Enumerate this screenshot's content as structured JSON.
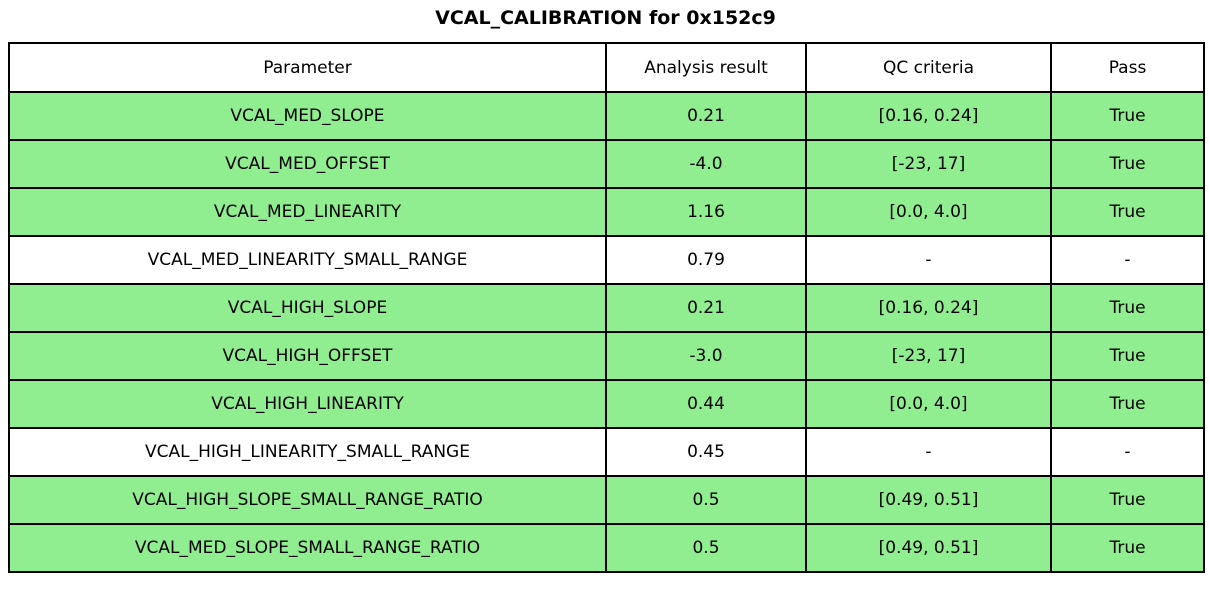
{
  "title": "VCAL_CALIBRATION for 0x152c9",
  "colors": {
    "pass_row_bg": "#90ee90",
    "plain_row_bg": "#ffffff",
    "header_bg": "#ffffff",
    "border": "#000000",
    "text": "#000000"
  },
  "chart_data": {
    "type": "table",
    "title": "VCAL_CALIBRATION for 0x152c9",
    "columns": [
      "Parameter",
      "Analysis result",
      "QC criteria",
      "Pass"
    ],
    "rows": [
      {
        "cells": [
          "VCAL_MED_SLOPE",
          "0.21",
          "[0.16, 0.24]",
          "True"
        ],
        "highlighted": true
      },
      {
        "cells": [
          "VCAL_MED_OFFSET",
          "-4.0",
          "[-23, 17]",
          "True"
        ],
        "highlighted": true
      },
      {
        "cells": [
          "VCAL_MED_LINEARITY",
          "1.16",
          "[0.0, 4.0]",
          "True"
        ],
        "highlighted": true
      },
      {
        "cells": [
          "VCAL_MED_LINEARITY_SMALL_RANGE",
          "0.79",
          "-",
          "-"
        ],
        "highlighted": false
      },
      {
        "cells": [
          "VCAL_HIGH_SLOPE",
          "0.21",
          "[0.16, 0.24]",
          "True"
        ],
        "highlighted": true
      },
      {
        "cells": [
          "VCAL_HIGH_OFFSET",
          "-3.0",
          "[-23, 17]",
          "True"
        ],
        "highlighted": true
      },
      {
        "cells": [
          "VCAL_HIGH_LINEARITY",
          "0.44",
          "[0.0, 4.0]",
          "True"
        ],
        "highlighted": true
      },
      {
        "cells": [
          "VCAL_HIGH_LINEARITY_SMALL_RANGE",
          "0.45",
          "-",
          "-"
        ],
        "highlighted": false
      },
      {
        "cells": [
          "VCAL_HIGH_SLOPE_SMALL_RANGE_RATIO",
          "0.5",
          "[0.49, 0.51]",
          "True"
        ],
        "highlighted": true
      },
      {
        "cells": [
          "VCAL_MED_SLOPE_SMALL_RANGE_RATIO",
          "0.5",
          "[0.49, 0.51]",
          "True"
        ],
        "highlighted": true
      }
    ],
    "highlight_meaning": "row passed QC",
    "legend_position": "none",
    "grid": "full cell borders"
  }
}
